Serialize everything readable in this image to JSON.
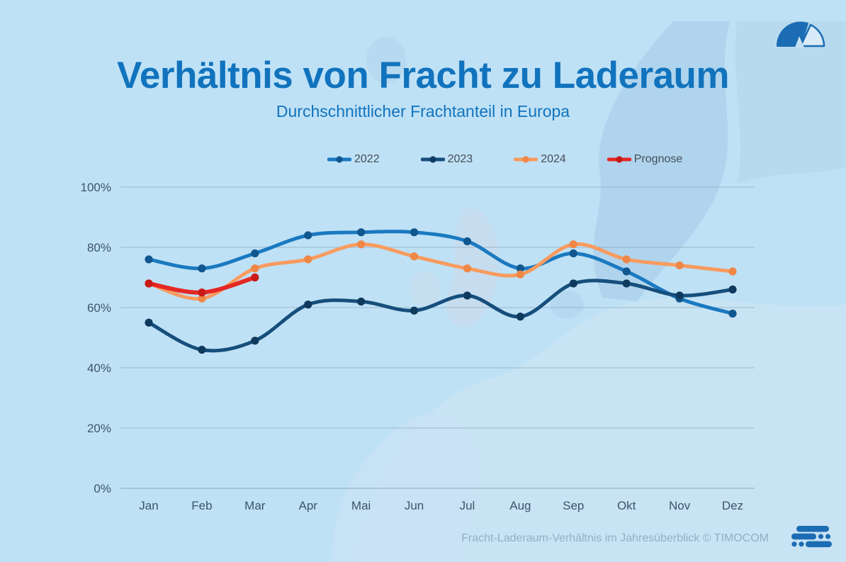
{
  "header": {
    "title": "Verhältnis von Fracht zu Laderaum",
    "subtitle": "Durchschnittlicher Frachtanteil in Europa"
  },
  "chart_data": {
    "type": "line",
    "title": "Verhältnis von Fracht zu Laderaum",
    "subtitle": "Durchschnittlicher Frachtanteil in Europa",
    "categories": [
      "Jan",
      "Feb",
      "Mar",
      "Apr",
      "Mai",
      "Jun",
      "Jul",
      "Aug",
      "Sep",
      "Okt",
      "Nov",
      "Dez"
    ],
    "y_ticks": [
      "0%",
      "20%",
      "40%",
      "60%",
      "80%",
      "100%"
    ],
    "ylim": [
      0,
      100
    ],
    "grid": true,
    "legend_position": "top",
    "series": [
      {
        "name": "2022",
        "color": "#1a79c0",
        "dot_color": "#11578f",
        "values": [
          76,
          73,
          78,
          84,
          85,
          85,
          82,
          73,
          78,
          72,
          63,
          58
        ]
      },
      {
        "name": "2023",
        "color": "#164e7c",
        "dot_color": "#0f3a5e",
        "values": [
          55,
          46,
          49,
          61,
          62,
          59,
          64,
          57,
          68,
          68,
          64,
          66
        ]
      },
      {
        "name": "2024",
        "color": "#f89b5e",
        "dot_color": "#ef8747",
        "values": [
          68,
          63,
          73,
          76,
          81,
          77,
          73,
          71,
          81,
          76,
          74,
          72
        ]
      },
      {
        "name": "Prognose",
        "color": "#e52823",
        "dot_color": "#c81a17",
        "values": [
          68,
          65,
          70
        ]
      }
    ]
  },
  "footer": {
    "caption": "Fracht-Laderaum-Verhältnis im Jahresüberblick © TIMOCOM"
  },
  "icons": {
    "top_right": "gauge-icon",
    "bottom_right": "timocom-logo-icon"
  },
  "colors": {
    "background": "#bfe1f6",
    "map_shade": "#aed3ec",
    "map_light": "#cbe3f4",
    "title": "#1173bd",
    "axis_text": "#3c5568",
    "legend_text": "#454e57",
    "grid": "#7e95a6",
    "footer_text": "#93aec6",
    "logo_blue": "#1b6cb3"
  }
}
